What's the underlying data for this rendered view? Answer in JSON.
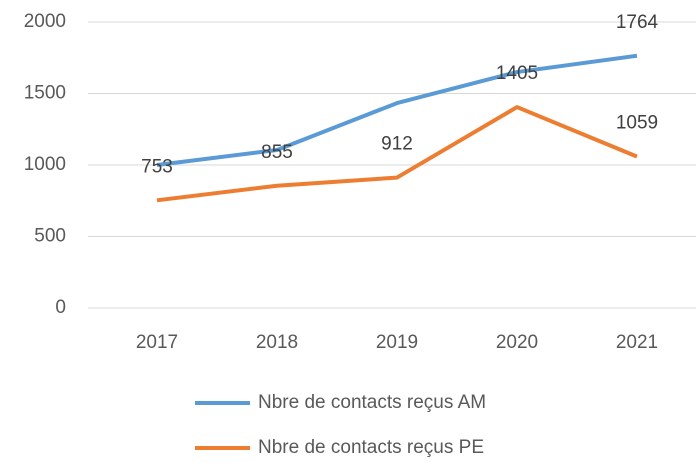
{
  "chart_data": {
    "type": "line",
    "categories": [
      "2017",
      "2018",
      "2019",
      "2020",
      "2021"
    ],
    "series": [
      {
        "name": "Nbre de contacts reçus AM",
        "color": "#5b9bd5",
        "values": [
          1000,
          1105,
          1433,
          1650,
          1764
        ],
        "value_labels": [
          null,
          null,
          null,
          null,
          "1764"
        ]
      },
      {
        "name": "Nbre de contacts reçus PE",
        "color": "#ed7d31",
        "values": [
          753,
          855,
          912,
          1405,
          1059
        ],
        "value_labels": [
          "753",
          "855",
          "912",
          "1405",
          "1059"
        ]
      }
    ],
    "ylim": [
      0,
      2000
    ],
    "yticks": [
      0,
      500,
      1000,
      1500,
      2000
    ],
    "grid": true,
    "legend": "bottom"
  }
}
